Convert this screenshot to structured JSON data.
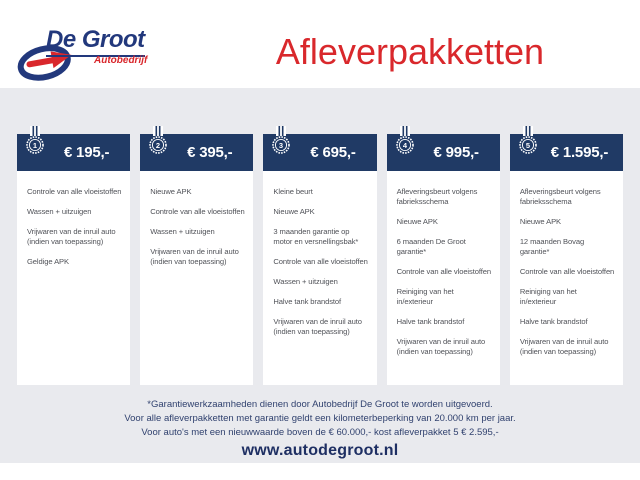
{
  "header": {
    "logo_line1": "De Groot",
    "logo_line2": "Autobedrijf",
    "title": "Afleverpakketten"
  },
  "packages": [
    {
      "number": "1",
      "price": "€ 195,-",
      "items": [
        "Controle van alle vloeistoffen",
        "Wassen + uitzuigen",
        "Vrijwaren van de inruil auto (indien van toepassing)",
        "Geldige APK"
      ]
    },
    {
      "number": "2",
      "price": "€ 395,-",
      "items": [
        "Nieuwe APK",
        "Controle van alle vloeistoffen",
        "Wassen + uitzuigen",
        "Vrijwaren van de inruil auto (indien van toepassing)"
      ]
    },
    {
      "number": "3",
      "price": "€ 695,-",
      "items": [
        "Kleine beurt",
        "Nieuwe APK",
        "3 maanden garantie op motor en versnellingsbak*",
        "Controle van alle vloeistoffen",
        "Wassen + uitzuigen",
        "Halve tank brandstof",
        "Vrijwaren van de inruil auto (indien van toepassing)"
      ]
    },
    {
      "number": "4",
      "price": "€ 995,-",
      "items": [
        "Afleveringsbeurt volgens fabrieksschema",
        "Nieuwe APK",
        "6 maanden De Groot garantie*",
        "Controle van alle vloeistoffen",
        "Reiniging van het in/exterieur",
        "Halve tank brandstof",
        "Vrijwaren van de inruil auto (indien van toepassing)"
      ]
    },
    {
      "number": "5",
      "price": "€ 1.595,-",
      "items": [
        "Afleveringsbeurt volgens fabrieksschema",
        "Nieuwe APK",
        "12 maanden Bovag garantie*",
        "Controle van alle vloeistoffen",
        "Reiniging van het in/exterieur",
        "Halve tank brandstof",
        "Vrijwaren van de inruil auto (indien van toepassing)"
      ]
    }
  ],
  "footer": {
    "disclaimer_lines": [
      "*Garantiewerkzaamheden dienen door Autobedrijf De Groot te worden uitgevoerd.",
      "Voor alle afleverpakketten met garantie geldt een kilometerbeperking van 20.000 km per jaar.",
      "Voor auto's met een nieuwwaarde boven de € 60.000,- kost afleverpakket 5 € 2.595,-"
    ],
    "website": "www.autodegroot.nl"
  },
  "colors": {
    "navy_header": "#203a65",
    "logo_navy": "#22387c",
    "brand_red": "#d9282c",
    "page_gray": "#e9eaee",
    "item_text": "#515359",
    "footer_text": "#31426f"
  }
}
